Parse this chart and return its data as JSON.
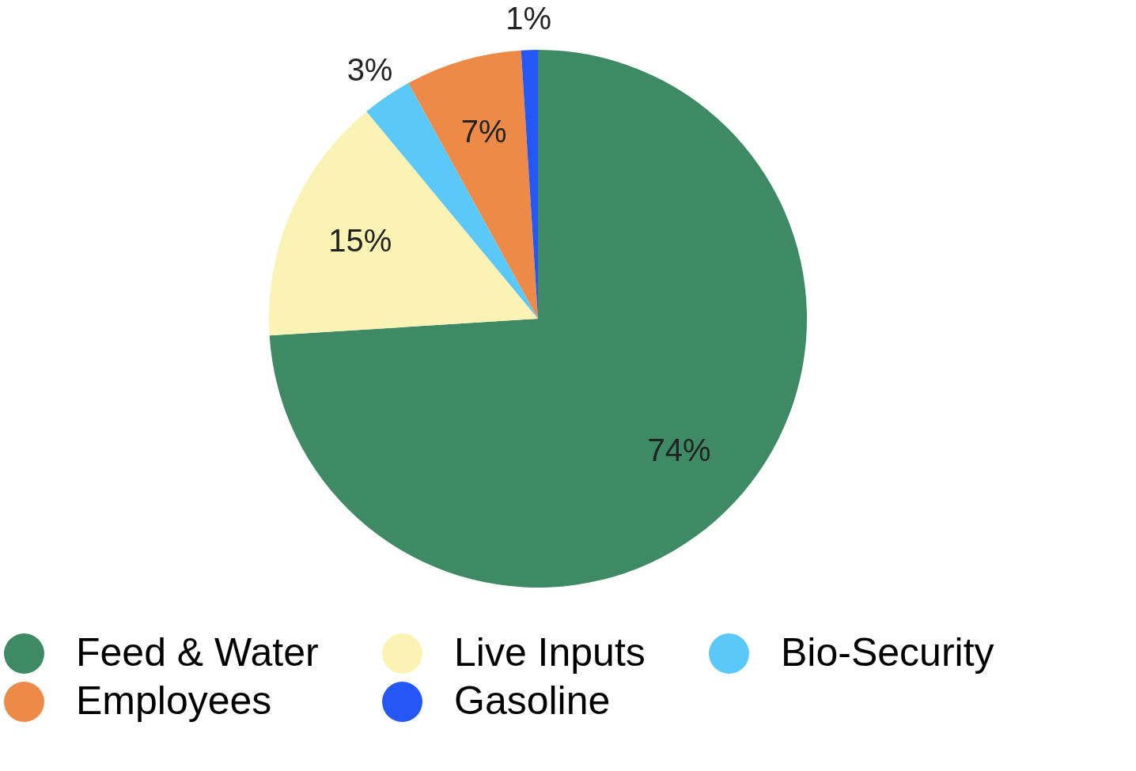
{
  "chart_data": {
    "type": "pie",
    "categories": [
      "Feed & Water",
      "Live Inputs",
      "Bio-Security",
      "Employees",
      "Gasoline"
    ],
    "values": [
      74,
      15,
      3,
      7,
      1
    ],
    "colors": [
      "#3d8a65",
      "#faf3b4",
      "#5bc8fa",
      "#ee8a48",
      "#2457f5"
    ],
    "value_labels": [
      "74%",
      "15%",
      "3%",
      "7%",
      "1%"
    ],
    "legend": "bottom"
  }
}
